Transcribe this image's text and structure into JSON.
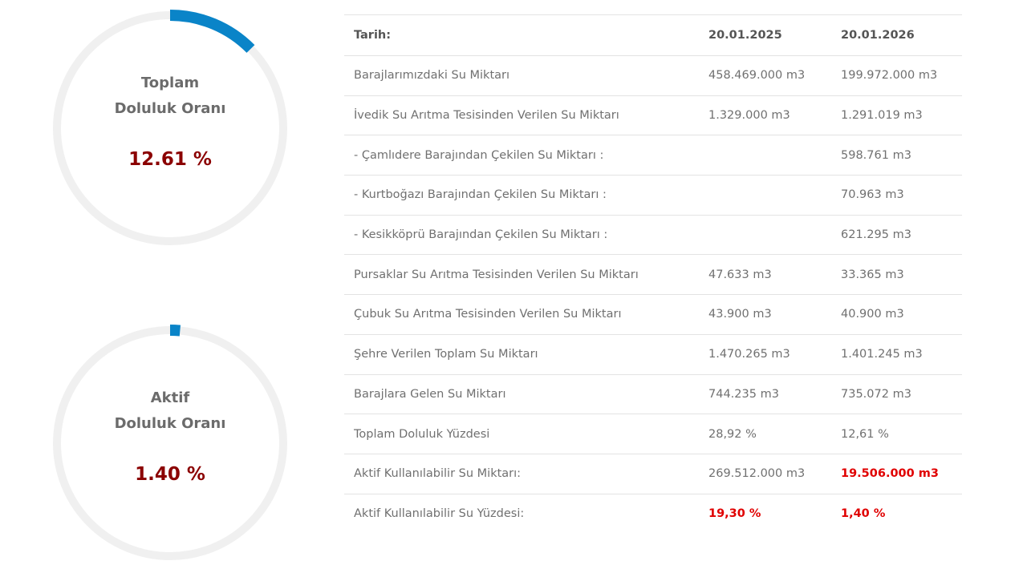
{
  "gauges": [
    {
      "label_line1": "Toplam",
      "label_line2": "Doluluk Oranı",
      "value_text": "12.61 %",
      "fill_fraction": 0.1261
    },
    {
      "label_line1": "Aktif",
      "label_line2": "Doluluk Oranı",
      "value_text": "1.40 %",
      "fill_fraction": 0.014
    }
  ],
  "colors": {
    "gauge_track": "#f0f0f0",
    "gauge_fill": "#0a84c8",
    "value_text": "#8b0000",
    "alert_text": "#e00000"
  },
  "table": {
    "headers": [
      "Tarih:",
      "20.01.2025",
      "20.01.2026"
    ],
    "rows": [
      [
        "Barajlarımızdaki Su Miktarı",
        "458.469.000 m3",
        "199.972.000 m3"
      ],
      [
        "İvedik Su Arıtma Tesisinden Verilen Su Miktarı",
        "1.329.000 m3",
        "1.291.019 m3"
      ],
      [
        "- Çamlıdere Barajından Çekilen Su Miktarı :",
        "",
        "598.761 m3"
      ],
      [
        "- Kurtboğazı Barajından Çekilen Su Miktarı :",
        "",
        "70.963 m3"
      ],
      [
        "- Kesikköprü Barajından Çekilen Su Miktarı :",
        "",
        "621.295 m3"
      ],
      [
        "Pursaklar Su Arıtma Tesisinden Verilen Su Miktarı",
        "47.633 m3",
        "33.365 m3"
      ],
      [
        "Çubuk Su Arıtma Tesisinden Verilen Su Miktarı",
        "43.900 m3",
        "40.900 m3"
      ],
      [
        "Şehre Verilen Toplam Su Miktarı",
        "1.470.265 m3",
        "1.401.245 m3"
      ],
      [
        "Barajlara Gelen Su Miktarı",
        "744.235 m3",
        "735.072 m3"
      ],
      [
        "Toplam Doluluk Yüzdesi",
        "28,92 %",
        "12,61 %"
      ],
      [
        "Aktif Kullanılabilir Su Miktarı:",
        "269.512.000 m3",
        "19.506.000 m3"
      ],
      [
        "Aktif Kullanılabilir Su Yüzdesi:",
        "19,30 %",
        "1,40 %"
      ]
    ]
  }
}
